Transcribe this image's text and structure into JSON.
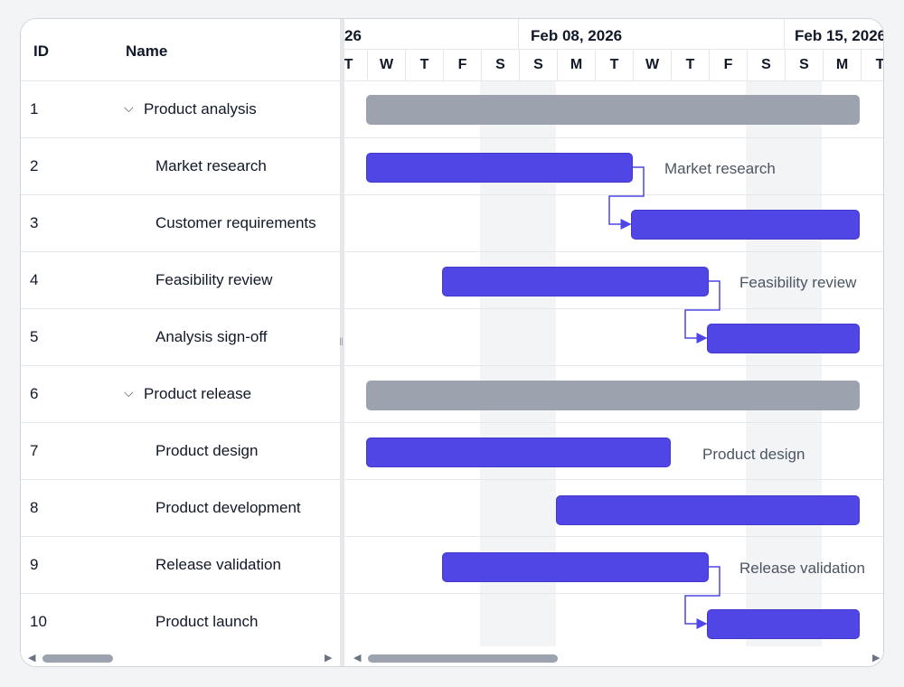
{
  "grid": {
    "columns": {
      "id": "ID",
      "name": "Name"
    },
    "rows": [
      {
        "id": "1",
        "name": "Product analysis",
        "type": "summary",
        "expanded": true
      },
      {
        "id": "2",
        "name": "Market research",
        "type": "task"
      },
      {
        "id": "3",
        "name": "Customer requirements",
        "type": "task"
      },
      {
        "id": "4",
        "name": "Feasibility review",
        "type": "task"
      },
      {
        "id": "5",
        "name": "Analysis sign-off",
        "type": "task"
      },
      {
        "id": "6",
        "name": "Product release",
        "type": "summary",
        "expanded": true
      },
      {
        "id": "7",
        "name": "Product design",
        "type": "task"
      },
      {
        "id": "8",
        "name": "Product development",
        "type": "task"
      },
      {
        "id": "9",
        "name": "Release validation",
        "type": "task"
      },
      {
        "id": "10",
        "name": "Product launch",
        "type": "task"
      }
    ],
    "expand_icon": "chevron-down-icon"
  },
  "timeline": {
    "weeks": [
      "26",
      "Feb 08, 2026",
      "Feb 15, 2026"
    ],
    "days": [
      "T",
      "W",
      "T",
      "F",
      "S",
      "S",
      "M",
      "T",
      "W",
      "T",
      "F",
      "S",
      "S",
      "M",
      "T"
    ],
    "colors": {
      "task_bar": "#4f46e5",
      "summary_bar": "#9ca3af",
      "connector": "#4f46e5",
      "weekend": "#f3f4f6"
    }
  },
  "bar_labels": {
    "row2": "Market research",
    "row4": "Feasibility review",
    "row7": "Product design",
    "row9": "Release validation"
  }
}
